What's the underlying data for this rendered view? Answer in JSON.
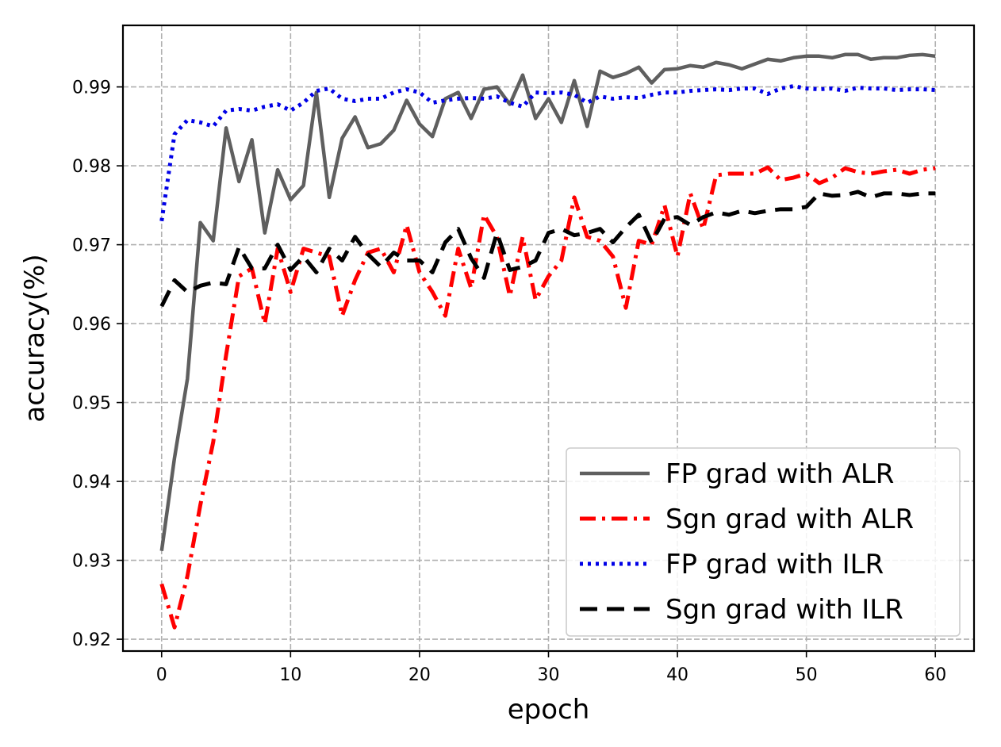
{
  "chart_data": {
    "type": "line",
    "title": "",
    "xlabel": "epoch",
    "ylabel": "accuracy(%)",
    "xlim": [
      -3,
      63
    ],
    "ylim": [
      0.9185,
      0.9978
    ],
    "xticks": [
      0,
      10,
      20,
      30,
      40,
      50,
      60
    ],
    "yticks": [
      0.92,
      0.93,
      0.94,
      0.95,
      0.96,
      0.97,
      0.98,
      0.99
    ],
    "xtick_labels": [
      "0",
      "10",
      "20",
      "30",
      "40",
      "50",
      "60"
    ],
    "ytick_labels": [
      "0.92",
      "0.93",
      "0.94",
      "0.95",
      "0.96",
      "0.97",
      "0.98",
      "0.99"
    ],
    "grid": true,
    "legend_position": "lower-right",
    "x": [
      0,
      1,
      2,
      3,
      4,
      5,
      6,
      7,
      8,
      9,
      10,
      11,
      12,
      13,
      14,
      15,
      16,
      17,
      18,
      19,
      20,
      21,
      22,
      23,
      24,
      25,
      26,
      27,
      28,
      29,
      30,
      31,
      32,
      33,
      34,
      35,
      36,
      37,
      38,
      39,
      40,
      41,
      42,
      43,
      44,
      45,
      46,
      47,
      48,
      49,
      50,
      51,
      52,
      53,
      54,
      55,
      56,
      57,
      58,
      59,
      60
    ],
    "series": [
      {
        "name": "FP grad with ALR",
        "color": "#5f5f5f",
        "style": "solid",
        "values": [
          0.9312,
          0.943,
          0.953,
          0.9728,
          0.9705,
          0.9848,
          0.978,
          0.9833,
          0.9715,
          0.9795,
          0.9757,
          0.9775,
          0.9893,
          0.976,
          0.9835,
          0.9862,
          0.9823,
          0.9828,
          0.9845,
          0.9883,
          0.9853,
          0.9837,
          0.9885,
          0.9893,
          0.986,
          0.9897,
          0.99,
          0.9878,
          0.9915,
          0.986,
          0.9885,
          0.9855,
          0.9908,
          0.985,
          0.992,
          0.9912,
          0.9917,
          0.9925,
          0.9905,
          0.9922,
          0.9923,
          0.9927,
          0.9925,
          0.9931,
          0.9928,
          0.9923,
          0.9929,
          0.9935,
          0.9933,
          0.9937,
          0.9939,
          0.9939,
          0.9937,
          0.9941,
          0.9941,
          0.9935,
          0.9937,
          0.9937,
          0.994,
          0.9941,
          0.9939
        ]
      },
      {
        "name": "Sgn grad with ALR",
        "color": "#ff0000",
        "style": "dashdot",
        "values": [
          0.927,
          0.9215,
          0.928,
          0.937,
          0.945,
          0.956,
          0.966,
          0.967,
          0.96,
          0.9695,
          0.964,
          0.9695,
          0.969,
          0.9685,
          0.961,
          0.9655,
          0.969,
          0.9695,
          0.9665,
          0.9725,
          0.9665,
          0.964,
          0.961,
          0.9695,
          0.9645,
          0.9738,
          0.971,
          0.9635,
          0.971,
          0.963,
          0.966,
          0.968,
          0.976,
          0.971,
          0.9705,
          0.9685,
          0.962,
          0.9705,
          0.97,
          0.975,
          0.9685,
          0.9765,
          0.972,
          0.9788,
          0.979,
          0.979,
          0.979,
          0.9798,
          0.9782,
          0.9785,
          0.979,
          0.9778,
          0.9785,
          0.9797,
          0.9792,
          0.979,
          0.9793,
          0.9795,
          0.979,
          0.9795,
          0.9797
        ]
      },
      {
        "name": "FP grad with ILR",
        "color": "#0000e6",
        "style": "dotted",
        "values": [
          0.973,
          0.984,
          0.9858,
          0.9855,
          0.985,
          0.987,
          0.9872,
          0.987,
          0.9875,
          0.9878,
          0.987,
          0.988,
          0.9895,
          0.9898,
          0.9885,
          0.9882,
          0.9885,
          0.9885,
          0.9893,
          0.9897,
          0.9893,
          0.988,
          0.9883,
          0.9885,
          0.9886,
          0.9885,
          0.9888,
          0.988,
          0.9875,
          0.9893,
          0.9892,
          0.9893,
          0.989,
          0.988,
          0.9888,
          0.9885,
          0.9887,
          0.9886,
          0.989,
          0.9893,
          0.9893,
          0.9895,
          0.9896,
          0.9897,
          0.9896,
          0.9898,
          0.9898,
          0.9891,
          0.9898,
          0.9901,
          0.9898,
          0.9897,
          0.9898,
          0.9895,
          0.9899,
          0.9898,
          0.9898,
          0.9896,
          0.9897,
          0.9897,
          0.9896
        ]
      },
      {
        "name": "Sgn grad with ILR",
        "color": "#000000",
        "style": "dashed",
        "values": [
          0.9622,
          0.9655,
          0.964,
          0.9648,
          0.9652,
          0.965,
          0.9697,
          0.967,
          0.967,
          0.97,
          0.9668,
          0.9685,
          0.9665,
          0.9695,
          0.968,
          0.971,
          0.9688,
          0.9672,
          0.969,
          0.968,
          0.968,
          0.9665,
          0.9703,
          0.972,
          0.9683,
          0.9658,
          0.9715,
          0.9668,
          0.9672,
          0.968,
          0.9715,
          0.972,
          0.9712,
          0.9715,
          0.972,
          0.9703,
          0.9722,
          0.9738,
          0.9703,
          0.9733,
          0.9735,
          0.9725,
          0.9735,
          0.9741,
          0.9738,
          0.9743,
          0.974,
          0.9743,
          0.9745,
          0.9745,
          0.9748,
          0.9765,
          0.9762,
          0.9763,
          0.9767,
          0.976,
          0.9765,
          0.9765,
          0.9763,
          0.9765,
          0.9765
        ]
      }
    ]
  }
}
